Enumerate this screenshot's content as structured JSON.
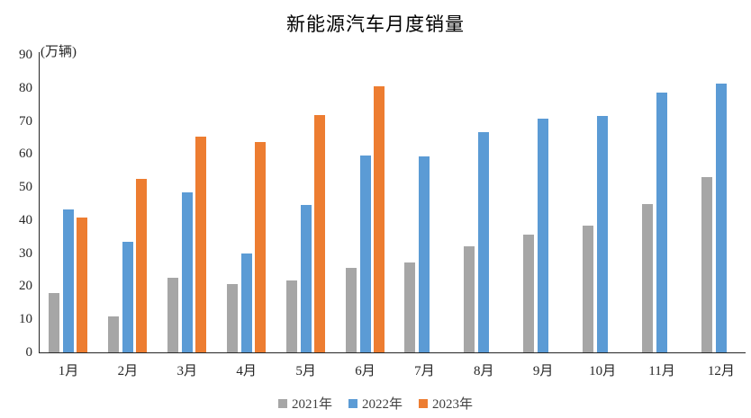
{
  "title": "新能源汽车月度销量",
  "y_axis_unit": "(万辆)",
  "colors": {
    "series_2021": "#A6A6A6",
    "series_2022": "#5B9BD5",
    "series_2023": "#ED7D31",
    "axis": "#262626",
    "text": "#262626"
  },
  "chart_data": {
    "type": "bar",
    "title": "新能源汽车月度销量",
    "ylabel": "(万辆)",
    "xlabel": "",
    "categories": [
      "1月",
      "2月",
      "3月",
      "4月",
      "5月",
      "6月",
      "7月",
      "8月",
      "9月",
      "10月",
      "11月",
      "12月"
    ],
    "series": [
      {
        "name": "2021年",
        "color": "#A6A6A6",
        "values": [
          17.9,
          11.0,
          22.6,
          20.6,
          21.7,
          25.6,
          27.1,
          32.1,
          35.7,
          38.3,
          45.0,
          53.1
        ]
      },
      {
        "name": "2022年",
        "color": "#5B9BD5",
        "values": [
          43.1,
          33.4,
          48.4,
          29.9,
          44.7,
          59.6,
          59.3,
          66.6,
          70.8,
          71.4,
          78.6,
          81.4
        ]
      },
      {
        "name": "2023年",
        "color": "#ED7D31",
        "values": [
          40.8,
          52.5,
          65.3,
          63.6,
          71.7,
          80.6,
          null,
          null,
          null,
          null,
          null,
          null
        ]
      }
    ],
    "ylim": [
      0,
      90
    ],
    "yticks": [
      0,
      10,
      20,
      30,
      40,
      50,
      60,
      70,
      80,
      90
    ],
    "grid": false,
    "legend_position": "bottom"
  }
}
